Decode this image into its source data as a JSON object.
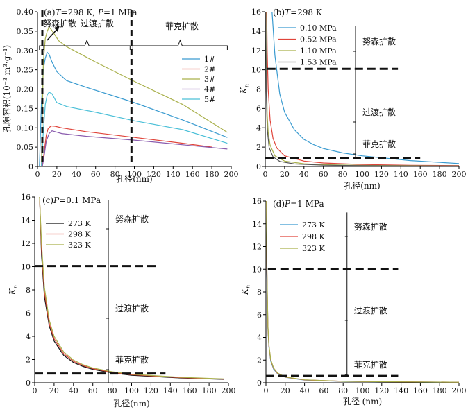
{
  "chart_data": [
    {
      "type": "line",
      "panel": "a",
      "title": "(a)T=298 K, P=1 MPa",
      "title_parts": [
        "(a)",
        "T",
        "=298 K, ",
        "P",
        "=1 MPa"
      ],
      "xlabel": "孔径(nm)",
      "ylabel": "孔隙容积(10⁻³ m³·g⁻¹)",
      "xlim": [
        0,
        200
      ],
      "ylim": [
        0,
        0.4
      ],
      "xticks": [
        0,
        20,
        40,
        60,
        80,
        100,
        120,
        140,
        160,
        180,
        200
      ],
      "yticks": [
        0,
        0.05,
        0.1,
        0.15,
        0.2,
        0.25,
        0.3,
        0.35,
        0.4
      ],
      "ytick_labels": [
        "0",
        "0.05",
        "0.10",
        "0.15",
        "0.20",
        "0.25",
        "0.30",
        "0.35",
        "0.40"
      ],
      "vlines": [
        5,
        97
      ],
      "regions": [
        {
          "label": "努森扩散",
          "x": [
            2,
            5
          ]
        },
        {
          "label": "过渡扩散",
          "x": [
            5,
            97
          ]
        },
        {
          "label": "菲克扩散",
          "x": [
            97,
            196
          ]
        }
      ],
      "legend": "center-right",
      "series": [
        {
          "name": "1#",
          "color": "#3a9bd0",
          "x": [
            2,
            4,
            6,
            8,
            10,
            12,
            15,
            20,
            30,
            50,
            100,
            150,
            196
          ],
          "y": [
            0.0,
            0.16,
            0.25,
            0.28,
            0.295,
            0.29,
            0.27,
            0.245,
            0.222,
            0.205,
            0.165,
            0.12,
            0.075
          ]
        },
        {
          "name": "2#",
          "color": "#e0443a",
          "x": [
            5,
            7,
            9,
            11,
            14,
            18,
            25,
            50,
            100,
            150,
            180
          ],
          "y": [
            0.0,
            0.04,
            0.08,
            0.098,
            0.105,
            0.104,
            0.1,
            0.09,
            0.075,
            0.06,
            0.05
          ]
        },
        {
          "name": "3#",
          "color": "#a9b04b",
          "x": [
            4,
            6,
            8,
            10,
            12,
            14,
            18,
            22,
            30,
            60,
            100,
            150,
            196
          ],
          "y": [
            0.0,
            0.27,
            0.33,
            0.35,
            0.36,
            0.355,
            0.34,
            0.325,
            0.31,
            0.27,
            0.22,
            0.16,
            0.088
          ]
        },
        {
          "name": "4#",
          "color": "#8a5cae",
          "x": [
            5,
            7,
            9,
            12,
            15,
            18,
            25,
            50,
            100,
            150,
            196
          ],
          "y": [
            0.0,
            0.03,
            0.065,
            0.085,
            0.092,
            0.09,
            0.085,
            0.078,
            0.068,
            0.056,
            0.045
          ]
        },
        {
          "name": "5#",
          "color": "#4cc0d8",
          "x": [
            4,
            6,
            8,
            10,
            12,
            15,
            20,
            30,
            60,
            100,
            150,
            196
          ],
          "y": [
            0.0,
            0.09,
            0.16,
            0.185,
            0.192,
            0.188,
            0.165,
            0.155,
            0.14,
            0.118,
            0.095,
            0.06
          ]
        }
      ]
    },
    {
      "type": "line",
      "panel": "b",
      "title": "(b)T=298 K",
      "title_parts": [
        "(b)",
        "T",
        "=298 K"
      ],
      "xlabel": "孔径(nm)",
      "ylabel": "Kn",
      "xlim": [
        0,
        200
      ],
      "ylim": [
        0,
        16
      ],
      "xticks": [
        0,
        20,
        40,
        60,
        80,
        100,
        120,
        140,
        160,
        180,
        200
      ],
      "yticks": [
        0,
        2,
        4,
        6,
        8,
        10,
        12,
        14,
        16
      ],
      "hlines": [
        {
          "y": 10.1,
          "x": [
            2,
            137
          ]
        },
        {
          "y": 0.85,
          "x": [
            0,
            160
          ]
        }
      ],
      "region_labels": [
        "努森扩散",
        "过渡扩散",
        "菲克扩散"
      ],
      "legend": "top-left",
      "series": [
        {
          "name": "0.10 MPa",
          "color": "#3a9bd0",
          "x": [
            7,
            10,
            15,
            20,
            30,
            40,
            50,
            60,
            80,
            100,
            150,
            200
          ],
          "y": [
            16,
            11.5,
            7.5,
            5.6,
            3.8,
            2.8,
            2.25,
            1.85,
            1.4,
            1.1,
            0.6,
            0.3
          ]
        },
        {
          "name": "0.52 MPa",
          "color": "#e0443a",
          "x": [
            1.5,
            2,
            3,
            5,
            8,
            12,
            20,
            40,
            60,
            100,
            150,
            200
          ],
          "y": [
            16,
            12,
            8,
            4.8,
            2.9,
            1.9,
            1.1,
            0.55,
            0.36,
            0.2,
            0.12,
            0.09
          ]
        },
        {
          "name": "1.10 MPa",
          "color": "#a9b04b",
          "x": [
            0.7,
            1,
            2,
            3,
            5,
            10,
            20,
            40,
            60,
            100,
            150,
            200
          ],
          "y": [
            16,
            11,
            5.4,
            3.6,
            2.2,
            1.1,
            0.55,
            0.28,
            0.18,
            0.11,
            0.08,
            0.06
          ]
        },
        {
          "name": "1.53 MPa",
          "color": "#555555",
          "x": [
            0.5,
            1,
            2,
            4,
            8,
            15,
            30,
            60,
            100,
            150,
            200
          ],
          "y": [
            16,
            7.8,
            3.9,
            1.95,
            1.0,
            0.52,
            0.26,
            0.13,
            0.08,
            0.06,
            0.05
          ]
        }
      ]
    },
    {
      "type": "line",
      "panel": "c",
      "title": "(c)P=0.1 MPa",
      "title_parts": [
        "(c)",
        "P",
        "=0.1 MPa"
      ],
      "xlabel": "孔径(nm)",
      "ylabel": "Kn",
      "xlim": [
        0,
        200
      ],
      "ylim": [
        0,
        16
      ],
      "xticks": [
        0,
        20,
        40,
        60,
        80,
        100,
        120,
        140,
        160,
        180,
        200
      ],
      "yticks": [
        0,
        2,
        4,
        6,
        8,
        10,
        12,
        14,
        16
      ],
      "hlines": [
        {
          "y": 10.05,
          "x": [
            0,
            127
          ]
        },
        {
          "y": 0.8,
          "x": [
            0,
            135
          ]
        }
      ],
      "vline": {
        "x": 76,
        "y": [
          0,
          16
        ]
      },
      "region_labels": [
        "努森扩散",
        "过渡扩散",
        "菲克扩散"
      ],
      "legend": "top-left",
      "series": [
        {
          "name": "273 K",
          "color": "#111111",
          "x": [
            5,
            7,
            10,
            15,
            20,
            30,
            40,
            50,
            60,
            80,
            100,
            150,
            195
          ],
          "y": [
            16,
            11,
            7.4,
            4.9,
            3.6,
            2.35,
            1.75,
            1.4,
            1.15,
            0.85,
            0.65,
            0.42,
            0.3
          ]
        },
        {
          "name": "298 K",
          "color": "#e0443a",
          "x": [
            5,
            7,
            10,
            15,
            20,
            30,
            40,
            50,
            60,
            80,
            100,
            150,
            195
          ],
          "y": [
            16,
            11.5,
            7.8,
            5.1,
            3.8,
            2.5,
            1.85,
            1.48,
            1.22,
            0.9,
            0.7,
            0.45,
            0.32
          ]
        },
        {
          "name": "323 K",
          "color": "#a9b04b",
          "x": [
            5,
            7,
            10,
            15,
            20,
            30,
            40,
            50,
            60,
            80,
            100,
            150,
            195
          ],
          "y": [
            16,
            12,
            8.2,
            5.4,
            4.0,
            2.65,
            1.95,
            1.55,
            1.28,
            0.95,
            0.74,
            0.48,
            0.34
          ]
        }
      ]
    },
    {
      "type": "line",
      "panel": "d",
      "title": "(d)P=1 MPa",
      "title_parts": [
        "(d)",
        "P",
        "=1 MPa"
      ],
      "xlabel": "孔径 (nm)",
      "ylabel": "Kn",
      "xlim": [
        0,
        200
      ],
      "ylim": [
        0,
        16
      ],
      "xticks": [
        0,
        20,
        40,
        60,
        80,
        100,
        120,
        140,
        160,
        180,
        200
      ],
      "yticks": [
        0,
        2,
        4,
        6,
        8,
        10,
        12,
        14,
        16
      ],
      "hlines": [
        {
          "y": 10.0,
          "x": [
            2,
            137
          ]
        },
        {
          "y": 0.6,
          "x": [
            0,
            137
          ]
        }
      ],
      "vline": {
        "x": 84,
        "y": [
          0.6,
          15
        ]
      },
      "region_labels": [
        "努森扩散",
        "过渡扩散",
        "菲克扩散"
      ],
      "legend": "top-left",
      "series": [
        {
          "name": "273 K",
          "color": "#3a9bd0",
          "x": [
            0.6,
            1,
            2,
            3,
            5,
            8,
            12,
            20,
            40,
            80,
            120,
            200
          ],
          "y": [
            16,
            9.6,
            4.8,
            3.2,
            1.9,
            1.2,
            0.8,
            0.48,
            0.24,
            0.12,
            0.08,
            0.05
          ]
        },
        {
          "name": "298 K",
          "color": "#e0443a",
          "x": [
            0.6,
            1,
            2,
            3,
            5,
            8,
            12,
            20,
            40,
            80,
            120,
            200
          ],
          "y": [
            16,
            9.9,
            4.95,
            3.3,
            2.0,
            1.25,
            0.83,
            0.5,
            0.25,
            0.13,
            0.09,
            0.05
          ]
        },
        {
          "name": "323 K",
          "color": "#a9b04b",
          "x": [
            0.6,
            1,
            2,
            3,
            5,
            8,
            12,
            20,
            40,
            80,
            120,
            200
          ],
          "y": [
            16,
            10.2,
            5.1,
            3.4,
            2.05,
            1.3,
            0.86,
            0.52,
            0.26,
            0.13,
            0.09,
            0.05
          ]
        }
      ]
    }
  ]
}
